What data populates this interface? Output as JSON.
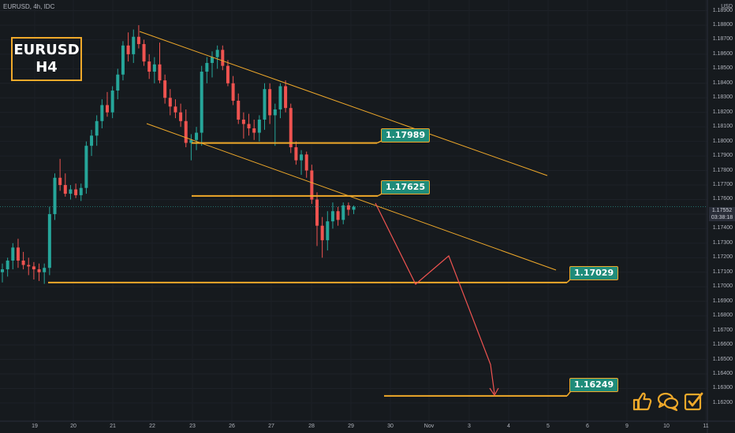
{
  "symbol": "EURUSD, 4h, IDC",
  "title_line1": "EURUSD",
  "title_line2": "H4",
  "currency_label": "USD",
  "last_price": "1.17552",
  "countdown": "03:38:18",
  "levels": [
    {
      "label": "1.17989",
      "price": 1.17989
    },
    {
      "label": "1.17625",
      "price": 1.17625
    },
    {
      "label": "1.17029",
      "price": 1.17029
    },
    {
      "label": "1.16249",
      "price": 1.16249
    }
  ],
  "colors": {
    "up": "#26a69a",
    "down": "#ef5350",
    "level": "#f0a92a",
    "projection": "#ef5350",
    "badge": "#1f8c7a"
  },
  "icons": [
    "thumbs-up-icon",
    "chat-bubbles-icon",
    "checkbox-icon"
  ],
  "chart_data": {
    "type": "candlestick",
    "timeframe": "4h",
    "price_axis": [
      "1.18900",
      "1.18800",
      "1.18700",
      "1.18600",
      "1.18500",
      "1.18400",
      "1.18300",
      "1.18200",
      "1.18100",
      "1.18000",
      "1.17900",
      "1.17800",
      "1.17700",
      "1.17600",
      "1.17500",
      "1.17400",
      "1.17300",
      "1.17200",
      "1.17100",
      "1.17000",
      "1.16900",
      "1.16800",
      "1.16700",
      "1.16600",
      "1.16500",
      "1.16400",
      "1.16300",
      "1.16200"
    ],
    "ylim": [
      1.1615,
      1.1895
    ],
    "date_axis": [
      "19",
      "20",
      "21",
      "22",
      "23",
      "26",
      "27",
      "28",
      "29",
      "30",
      "Nov",
      "3",
      "4",
      "5",
      "6",
      "9",
      "10",
      "11"
    ],
    "candles": [
      {
        "o": 1.171,
        "h": 1.1716,
        "l": 1.1703,
        "c": 1.1712
      },
      {
        "o": 1.1712,
        "h": 1.172,
        "l": 1.1707,
        "c": 1.1718
      },
      {
        "o": 1.1718,
        "h": 1.173,
        "l": 1.1712,
        "c": 1.1727
      },
      {
        "o": 1.1727,
        "h": 1.1733,
        "l": 1.1713,
        "c": 1.1718
      },
      {
        "o": 1.1718,
        "h": 1.1724,
        "l": 1.1712,
        "c": 1.1715
      },
      {
        "o": 1.1715,
        "h": 1.172,
        "l": 1.1708,
        "c": 1.1714
      },
      {
        "o": 1.1714,
        "h": 1.1717,
        "l": 1.1705,
        "c": 1.1712
      },
      {
        "o": 1.1712,
        "h": 1.1716,
        "l": 1.1704,
        "c": 1.171
      },
      {
        "o": 1.171,
        "h": 1.1716,
        "l": 1.1702,
        "c": 1.1713
      },
      {
        "o": 1.1713,
        "h": 1.1755,
        "l": 1.1708,
        "c": 1.175
      },
      {
        "o": 1.175,
        "h": 1.1778,
        "l": 1.1746,
        "c": 1.1775
      },
      {
        "o": 1.1775,
        "h": 1.1788,
        "l": 1.1766,
        "c": 1.177
      },
      {
        "o": 1.177,
        "h": 1.1778,
        "l": 1.1762,
        "c": 1.1764
      },
      {
        "o": 1.1764,
        "h": 1.177,
        "l": 1.176,
        "c": 1.1767
      },
      {
        "o": 1.1767,
        "h": 1.1771,
        "l": 1.1761,
        "c": 1.1763
      },
      {
        "o": 1.1763,
        "h": 1.1771,
        "l": 1.1759,
        "c": 1.1768
      },
      {
        "o": 1.1768,
        "h": 1.18,
        "l": 1.1764,
        "c": 1.1797
      },
      {
        "o": 1.1797,
        "h": 1.1808,
        "l": 1.179,
        "c": 1.1804
      },
      {
        "o": 1.1804,
        "h": 1.1818,
        "l": 1.1797,
        "c": 1.1814
      },
      {
        "o": 1.1814,
        "h": 1.1829,
        "l": 1.1809,
        "c": 1.1825
      },
      {
        "o": 1.1825,
        "h": 1.1834,
        "l": 1.1817,
        "c": 1.182
      },
      {
        "o": 1.182,
        "h": 1.1838,
        "l": 1.1816,
        "c": 1.1835
      },
      {
        "o": 1.1835,
        "h": 1.185,
        "l": 1.1829,
        "c": 1.1846
      },
      {
        "o": 1.1846,
        "h": 1.1869,
        "l": 1.1842,
        "c": 1.1866
      },
      {
        "o": 1.1866,
        "h": 1.1875,
        "l": 1.1855,
        "c": 1.186
      },
      {
        "o": 1.186,
        "h": 1.1877,
        "l": 1.1854,
        "c": 1.1872
      },
      {
        "o": 1.1872,
        "h": 1.188,
        "l": 1.1864,
        "c": 1.1867
      },
      {
        "o": 1.1867,
        "h": 1.187,
        "l": 1.1852,
        "c": 1.1855
      },
      {
        "o": 1.1855,
        "h": 1.186,
        "l": 1.1843,
        "c": 1.1848
      },
      {
        "o": 1.1848,
        "h": 1.1858,
        "l": 1.184,
        "c": 1.1853
      },
      {
        "o": 1.1853,
        "h": 1.1868,
        "l": 1.184,
        "c": 1.1842
      },
      {
        "o": 1.1842,
        "h": 1.1846,
        "l": 1.1826,
        "c": 1.183
      },
      {
        "o": 1.183,
        "h": 1.1836,
        "l": 1.1818,
        "c": 1.1824
      },
      {
        "o": 1.1824,
        "h": 1.1829,
        "l": 1.1816,
        "c": 1.182
      },
      {
        "o": 1.182,
        "h": 1.1826,
        "l": 1.181,
        "c": 1.1814
      },
      {
        "o": 1.1814,
        "h": 1.1822,
        "l": 1.1796,
        "c": 1.1799
      },
      {
        "o": 1.1799,
        "h": 1.1805,
        "l": 1.1787,
        "c": 1.1801
      },
      {
        "o": 1.1801,
        "h": 1.181,
        "l": 1.1794,
        "c": 1.1806
      },
      {
        "o": 1.1806,
        "h": 1.1852,
        "l": 1.1797,
        "c": 1.1848
      },
      {
        "o": 1.1848,
        "h": 1.1858,
        "l": 1.184,
        "c": 1.1854
      },
      {
        "o": 1.1854,
        "h": 1.1862,
        "l": 1.1844,
        "c": 1.1858
      },
      {
        "o": 1.1858,
        "h": 1.1866,
        "l": 1.185,
        "c": 1.1863
      },
      {
        "o": 1.1863,
        "h": 1.1866,
        "l": 1.1849,
        "c": 1.1852
      },
      {
        "o": 1.1852,
        "h": 1.1856,
        "l": 1.1838,
        "c": 1.184
      },
      {
        "o": 1.184,
        "h": 1.1845,
        "l": 1.1825,
        "c": 1.1828
      },
      {
        "o": 1.1828,
        "h": 1.1833,
        "l": 1.1812,
        "c": 1.1815
      },
      {
        "o": 1.1815,
        "h": 1.182,
        "l": 1.1802,
        "c": 1.1812
      },
      {
        "o": 1.1812,
        "h": 1.1819,
        "l": 1.1804,
        "c": 1.1809
      },
      {
        "o": 1.1809,
        "h": 1.1815,
        "l": 1.1801,
        "c": 1.1806
      },
      {
        "o": 1.1806,
        "h": 1.1818,
        "l": 1.18,
        "c": 1.1815
      },
      {
        "o": 1.1815,
        "h": 1.184,
        "l": 1.1808,
        "c": 1.1836
      },
      {
        "o": 1.1836,
        "h": 1.184,
        "l": 1.1812,
        "c": 1.1818
      },
      {
        "o": 1.1818,
        "h": 1.1826,
        "l": 1.1797,
        "c": 1.1822
      },
      {
        "o": 1.1822,
        "h": 1.184,
        "l": 1.1816,
        "c": 1.1838
      },
      {
        "o": 1.1838,
        "h": 1.1842,
        "l": 1.182,
        "c": 1.1823
      },
      {
        "o": 1.1823,
        "h": 1.1826,
        "l": 1.1792,
        "c": 1.1796
      },
      {
        "o": 1.1796,
        "h": 1.18,
        "l": 1.1784,
        "c": 1.1787
      },
      {
        "o": 1.1787,
        "h": 1.1794,
        "l": 1.1777,
        "c": 1.1791
      },
      {
        "o": 1.1791,
        "h": 1.1793,
        "l": 1.1775,
        "c": 1.178
      },
      {
        "o": 1.178,
        "h": 1.1784,
        "l": 1.1757,
        "c": 1.176
      },
      {
        "o": 1.176,
        "h": 1.1765,
        "l": 1.1728,
        "c": 1.1742
      },
      {
        "o": 1.1742,
        "h": 1.1748,
        "l": 1.172,
        "c": 1.1732
      },
      {
        "o": 1.1732,
        "h": 1.1752,
        "l": 1.1725,
        "c": 1.1745
      },
      {
        "o": 1.1745,
        "h": 1.1758,
        "l": 1.174,
        "c": 1.1752
      },
      {
        "o": 1.1752,
        "h": 1.1755,
        "l": 1.1742,
        "c": 1.1746
      },
      {
        "o": 1.1746,
        "h": 1.1758,
        "l": 1.1743,
        "c": 1.1756
      },
      {
        "o": 1.1756,
        "h": 1.1758,
        "l": 1.1749,
        "c": 1.1753
      },
      {
        "o": 1.1753,
        "h": 1.1756,
        "l": 1.175,
        "c": 1.1755
      }
    ]
  }
}
